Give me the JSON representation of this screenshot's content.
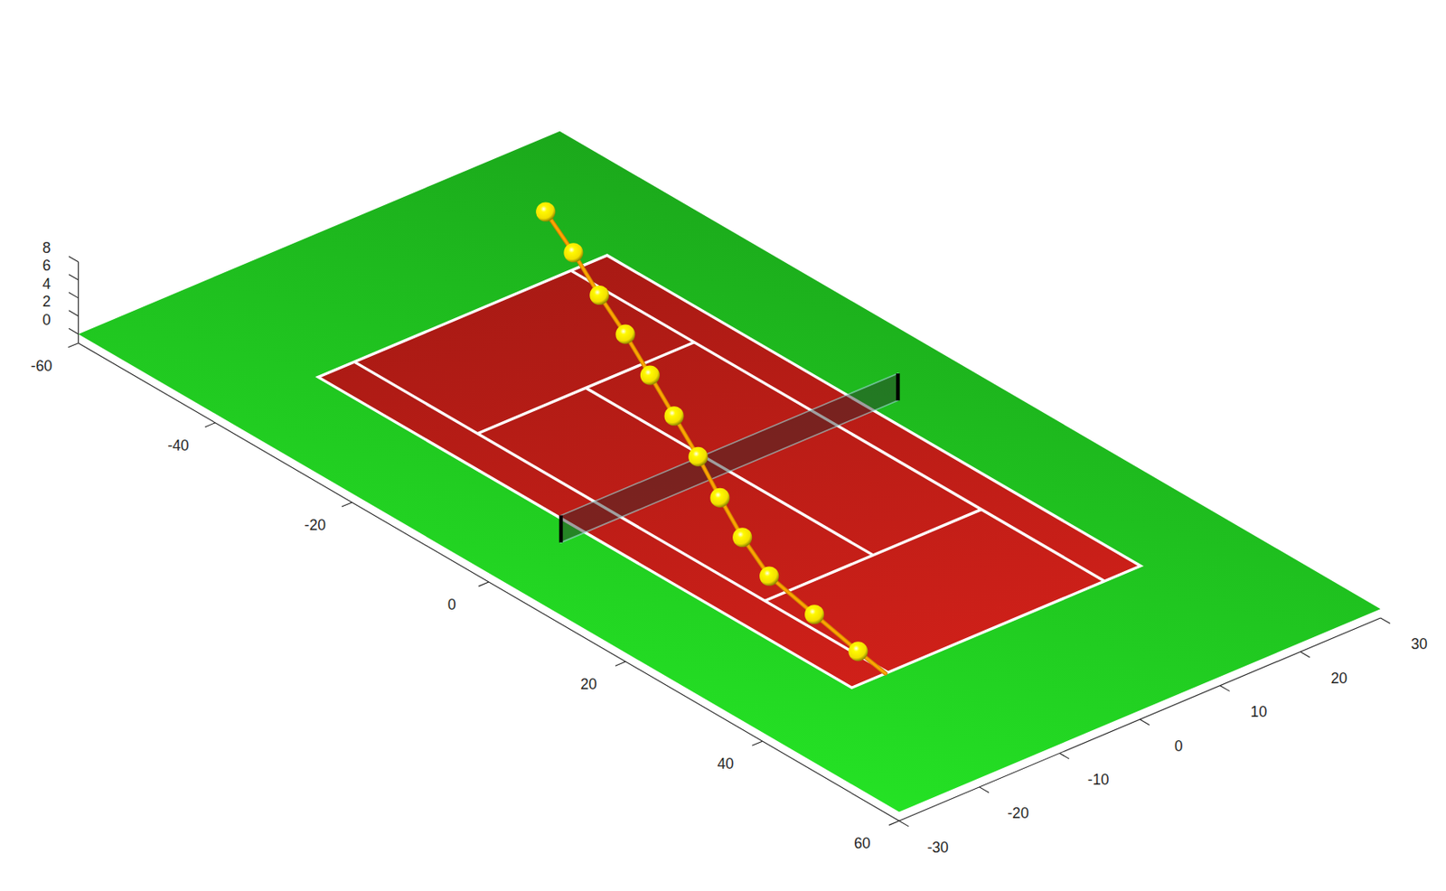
{
  "chart_data": {
    "type": "scatter3d",
    "xlim": [
      -60,
      60
    ],
    "ylim": [
      -30,
      30
    ],
    "zlim": [
      -1,
      8
    ],
    "xticks": [
      -60,
      -40,
      -20,
      0,
      20,
      40,
      60
    ],
    "yticks": [
      -30,
      -20,
      -10,
      0,
      10,
      20,
      30
    ],
    "zticks": [
      0,
      2,
      4,
      6,
      8
    ],
    "ground": {
      "color": "#1fbf1f"
    },
    "court": {
      "x": [
        -39,
        39
      ],
      "y": [
        -18,
        18
      ],
      "singles_y": [
        -13.5,
        13.5
      ],
      "service_x": [
        -21,
        21
      ],
      "color": "#b81c16"
    },
    "net": {
      "x": 0,
      "y": [
        -21,
        21
      ],
      "height": 3
    },
    "series": [
      {
        "type": "line",
        "color": "#ffa500",
        "x": [
          -38.6,
          -31.6,
          -25.0,
          -18.5,
          -12.2,
          -6.1,
          0.0,
          6.0,
          12.1,
          18.6,
          26.5,
          34.3,
          39.0
        ],
        "y": [
          10.0,
          7.5,
          5.1,
          2.8,
          0.5,
          -1.7,
          -3.9,
          -6.3,
          -8.7,
          -10.9,
          -12.0,
          -13.2,
          -13.8
        ],
        "z": [
          8.0,
          7.5,
          6.6,
          6.0,
          5.1,
          4.1,
          3.1,
          2.1,
          1.3,
          0.7,
          0.35,
          0.15,
          0
        ]
      },
      {
        "type": "scatter",
        "marker": "sphere",
        "color": "#f2e000",
        "x": [
          -38.6,
          -31.6,
          -25.0,
          -18.5,
          -12.2,
          -6.1,
          0.0,
          6.0,
          12.1,
          18.6,
          26.5,
          34.3
        ],
        "y": [
          10.0,
          7.5,
          5.1,
          2.8,
          0.5,
          -1.7,
          -3.9,
          -6.3,
          -8.7,
          -10.9,
          -12.0,
          -13.2
        ],
        "z": [
          8.0,
          7.5,
          6.6,
          6.0,
          5.1,
          4.1,
          3.1,
          2.1,
          1.3,
          0.7,
          0.35,
          0.15
        ]
      }
    ]
  }
}
